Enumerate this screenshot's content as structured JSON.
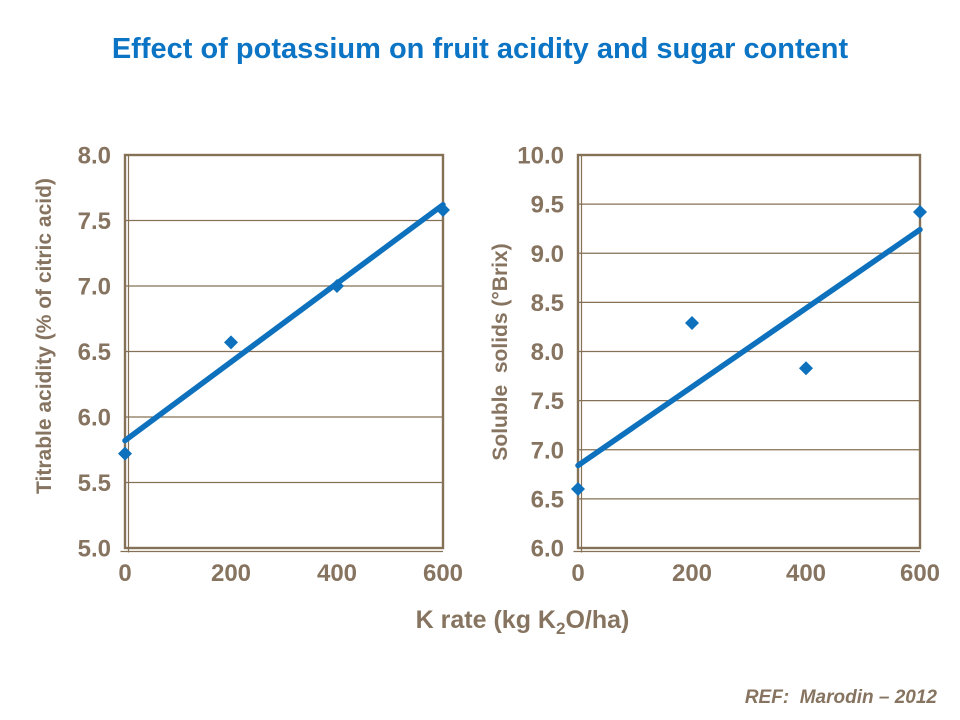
{
  "title": {
    "text": "Effect of potassium on fruit acidity and sugar content",
    "color": "#0c74c4"
  },
  "xlabel": {
    "prefix": "K rate (kg K",
    "sub": "2",
    "suffix": "O/ha)"
  },
  "reference": "REF:  Marodin – 2012",
  "colors": {
    "series_blue": "#0d71bd",
    "axis_text_brown": "#867460",
    "axis_line_brown": "#857155",
    "grid_brown": "#857155",
    "title_blue": "#0c74c4",
    "background": "#ffffff"
  },
  "chart_data": [
    {
      "type": "scatter",
      "name": "titrable-acidity",
      "ylabel": "Titrable acidity (% of citric acid)",
      "xlabel": "K rate (kg K2O/ha)",
      "x": [
        0,
        200,
        400,
        600
      ],
      "y": [
        5.72,
        6.57,
        7.0,
        7.58
      ],
      "trendline": {
        "x": [
          0,
          600
        ],
        "y": [
          5.82,
          7.62
        ]
      },
      "xlim": [
        0,
        600
      ],
      "ylim": [
        5.0,
        8.0
      ],
      "ytick_step": 0.5,
      "yticks": [
        "5.0",
        "5.5",
        "6.0",
        "6.5",
        "7.0",
        "7.5",
        "8.0"
      ],
      "xticks": [
        0,
        200,
        400,
        600
      ],
      "grid": true,
      "legend": "none",
      "marker": "diamond"
    },
    {
      "type": "scatter",
      "name": "soluble-solids",
      "ylabel": "Soluble  solids (°Brix)",
      "xlabel": "K rate (kg K2O/ha)",
      "x": [
        0,
        200,
        400,
        600
      ],
      "y": [
        6.6,
        8.29,
        7.83,
        9.42
      ],
      "trendline": {
        "x": [
          0,
          600
        ],
        "y": [
          6.84,
          9.24
        ]
      },
      "xlim": [
        0,
        600
      ],
      "ylim": [
        6.0,
        10.0
      ],
      "ytick_step": 0.5,
      "yticks": [
        "6.0",
        "6.5",
        "7.0",
        "7.5",
        "8.0",
        "8.5",
        "9.0",
        "9.5",
        "10.0"
      ],
      "xticks": [
        0,
        200,
        400,
        600
      ],
      "grid": true,
      "legend": "none",
      "marker": "diamond"
    }
  ]
}
